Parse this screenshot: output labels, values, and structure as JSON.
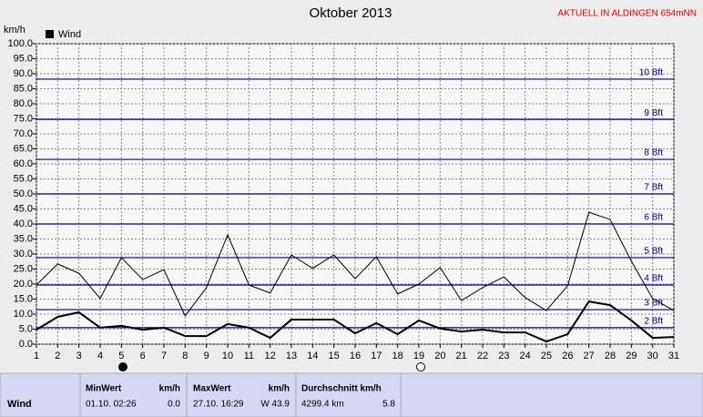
{
  "chart_data": {
    "type": "line",
    "title": "Oktober 2013",
    "subtitle": "AKTUELL IN ALDINGEN 654mNN",
    "y_label": "km/h",
    "x": [
      1,
      2,
      3,
      4,
      5,
      6,
      7,
      8,
      9,
      10,
      11,
      12,
      13,
      14,
      15,
      16,
      17,
      18,
      19,
      20,
      21,
      22,
      23,
      24,
      25,
      26,
      27,
      28,
      29,
      30,
      31
    ],
    "series": [
      {
        "name": "Wind",
        "color": "#000000",
        "line_width": 2,
        "values": [
          4.8,
          9.1,
          10.6,
          5.5,
          6.1,
          4.8,
          5.5,
          2.7,
          2.7,
          6.7,
          5.5,
          2.1,
          8.2,
          8.2,
          8.2,
          3.6,
          7.0,
          3.3,
          7.9,
          5.2,
          4.2,
          4.8,
          3.9,
          3.9,
          0.9,
          3.3,
          14.2,
          13.0,
          7.9,
          2.1,
          2.4
        ]
      },
      {
        "color": "#000000",
        "line_width": 1,
        "values": [
          19.7,
          26.7,
          23.6,
          15.2,
          28.8,
          21.5,
          24.8,
          9.4,
          18.8,
          36.4,
          19.7,
          17.0,
          29.7,
          25.2,
          29.7,
          21.8,
          29.1,
          16.7,
          20.0,
          25.5,
          14.5,
          18.8,
          22.4,
          15.5,
          11.2,
          19.4,
          43.9,
          41.5,
          27.6,
          15.2,
          11.2
        ]
      }
    ],
    "reference_lines": [
      {
        "value": 5.5,
        "label": "2 Bft"
      },
      {
        "value": 11.5,
        "label": "3 Bft"
      },
      {
        "value": 19.7,
        "label": "4 Bft"
      },
      {
        "value": 28.8,
        "label": "5 Bft"
      },
      {
        "value": 40,
        "label": "6 Bft"
      },
      {
        "value": 50,
        "label": "7 Bft"
      },
      {
        "value": 61.5,
        "label": "8 Bft"
      },
      {
        "value": 74.8,
        "label": "9 Bft"
      },
      {
        "value": 88.2,
        "label": "10 Bft"
      }
    ],
    "reference_color": "#000080",
    "xlim": [
      1,
      31
    ],
    "xticks": [
      1,
      2,
      3,
      4,
      5,
      6,
      7,
      8,
      9,
      10,
      11,
      12,
      13,
      14,
      15,
      16,
      17,
      18,
      19,
      20,
      21,
      22,
      23,
      24,
      25,
      26,
      27,
      28,
      29,
      30,
      31
    ],
    "ylim": [
      0,
      100
    ],
    "yticks": [
      {
        "value": 0,
        "label": "0.0"
      },
      {
        "value": 5,
        "label": "5.0"
      },
      {
        "value": 10,
        "label": "10.0"
      },
      {
        "value": 15,
        "label": "15.0"
      },
      {
        "value": 20,
        "label": "20.0"
      },
      {
        "value": 25,
        "label": "25.0"
      },
      {
        "value": 30,
        "label": "30.0"
      },
      {
        "value": 35,
        "label": "35.0"
      },
      {
        "value": 40,
        "label": "40.0"
      },
      {
        "value": 45,
        "label": "45.0"
      },
      {
        "value": 50,
        "label": "50.0"
      },
      {
        "value": 55,
        "label": "55.0"
      },
      {
        "value": 60,
        "label": "60.0"
      },
      {
        "value": 65,
        "label": "65.0"
      },
      {
        "value": 70,
        "label": "70.0"
      },
      {
        "value": 75,
        "label": "75.0"
      },
      {
        "value": 80,
        "label": "80.0"
      },
      {
        "value": 85,
        "label": "85.0"
      },
      {
        "value": 90,
        "label": "90.0"
      },
      {
        "value": 95,
        "label": "95.0"
      },
      {
        "value": 100,
        "label": "100.0"
      }
    ],
    "grid": true
  },
  "table": {
    "headers": [
      "MinWert",
      "km/h",
      "MaxWert",
      "km/h",
      "Durchschnitt km/h"
    ],
    "rows": [
      [
        "Wind",
        "01.10.  02:26",
        "0.0",
        "27.10.  16:29",
        "W 43.9",
        "4299.4 km",
        "5.8"
      ]
    ]
  }
}
